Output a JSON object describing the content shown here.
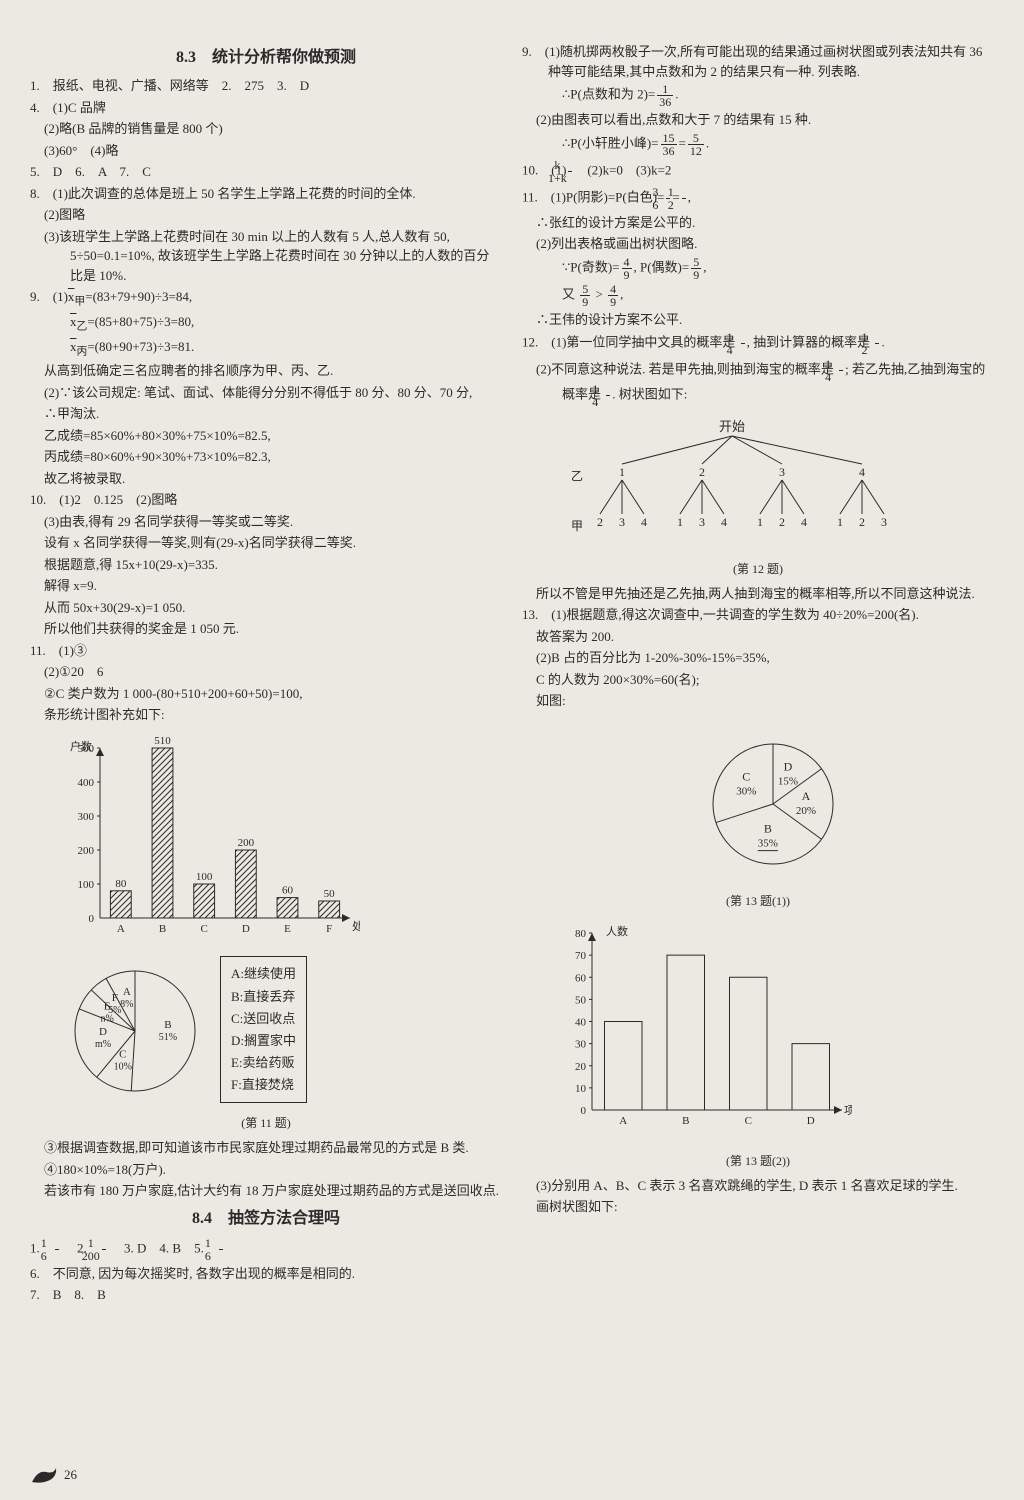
{
  "page_number": "26",
  "left": {
    "title83": "8.3　统计分析帮你做预测",
    "l1": "1.　报纸、电视、广播、网络等　2.　275　3.　D",
    "l4a": "4.　(1)C 品牌",
    "l4b": "(2)略(B 品牌的销售量是 800 个)",
    "l4c": "(3)60°　(4)略",
    "l5": "5.　D　6.　A　7.　C",
    "l8a": "8.　(1)此次调查的总体是班上 50 名学生上学路上花费的时间的全体.",
    "l8b": "(2)图略",
    "l8c": "(3)该班学生上学路上花费时间在 30 min 以上的人数有 5 人,总人数有 50, 5÷50=0.1=10%, 故该班学生上学路上花费时间在 30 分钟以上的人数的百分比是 10%.",
    "l9a": "9.　(1)x̄甲=(83+79+90)÷3=84,",
    "l9b": "x̄乙=(85+80+75)÷3=80,",
    "l9c": "x̄丙=(80+90+73)÷3=81.",
    "l9d": "从高到低确定三名应聘者的排名顺序为甲、丙、乙.",
    "l9e": "(2)∵该公司规定: 笔试、面试、体能得分分别不得低于 80 分、80 分、70 分,",
    "l9f": "∴甲淘汰.",
    "l9g": "乙成绩=85×60%+80×30%+75×10%=82.5,",
    "l9h": "丙成绩=80×60%+90×30%+73×10%=82.3,",
    "l9i": "故乙将被录取.",
    "l10a": "10.　(1)2　0.125　(2)图略",
    "l10b": "(3)由表,得有 29 名同学获得一等奖或二等奖.",
    "l10c": "设有 x 名同学获得一等奖,则有(29-x)名同学获得二等奖.",
    "l10d": "根据题意,得 15x+10(29-x)=335.",
    "l10e": "解得 x=9.",
    "l10f": "从而 50x+30(29-x)=1 050.",
    "l10g": "所以他们共获得的奖金是 1 050 元.",
    "l11a": "11.　(1)③",
    "l11b": "(2)①20　6",
    "l11c": "②C 类户数为 1 000-(80+510+200+60+50)=100,",
    "l11d": "条形统计图补充如下:",
    "bar_chart": {
      "y_label": "户数",
      "x_label": "处理方式",
      "categories": [
        "A",
        "B",
        "C",
        "D",
        "E",
        "F"
      ],
      "values": [
        80,
        510,
        100,
        200,
        60,
        50
      ],
      "ymax": 500,
      "ytick_step": 100,
      "bar_fill": "pattern",
      "axis_color": "#2a2a2a",
      "bg": "#ece9e2",
      "font_size": 11
    },
    "legend": {
      "items": [
        "A:继续使用",
        "B:直接丢弃",
        "C:送回收点",
        "D:搁置家中",
        "E:卖给药贩",
        "F:直接焚烧"
      ]
    },
    "pie": {
      "slices": [
        {
          "label": "B",
          "pct": "51%"
        },
        {
          "label": "C",
          "pct": "10%"
        },
        {
          "label": "D",
          "pct": "m%"
        },
        {
          "label": "E",
          "pct": "n%"
        },
        {
          "label": "F",
          "pct": "5%"
        },
        {
          "label": "A",
          "pct": "8%"
        }
      ],
      "stroke": "#2a2a2a"
    },
    "cap11": "(第 11 题)",
    "l11e": "③根据调查数据,即可知道该市市民家庭处理过期药品最常见的方式是 B 类.",
    "l11f": "④180×10%=18(万户).",
    "l11g": "若该市有 180 万户家庭,估计大约有 18 万户家庭处理过期药品的方式是送回收点.",
    "title84": "8.4　抽签方法合理吗",
    "l84_1_pre": "1.　",
    "l84_1_f1n": "1",
    "l84_1_f1d": "6",
    "l84_2": "　2.　",
    "l84_2_f1n": "1",
    "l84_2_f1d": "200",
    "l84_345": "　3. D　4. B　5.　",
    "l84_5_f1n": "1",
    "l84_5_f1d": "6",
    "l84_6": "6.　不同意, 因为每次摇奖时, 各数字出现的概率是相同的.",
    "l84_7": "7.　B　8.　B"
  },
  "right": {
    "l9a": "9.　(1)随机掷两枚骰子一次,所有可能出现的结果通过画树状图或列表法知共有 36 种等可能结果,其中点数和为 2 的结果只有一种. 列表略.",
    "l9b_pre": "∴P(点数和为 2)=",
    "l9b_f1n": "1",
    "l9b_f1d": "36",
    "l9b_post": ".",
    "l9c": "(2)由图表可以看出,点数和大于 7 的结果有 15 种.",
    "l9d_pre": "∴P(小轩胜小峰)=",
    "l9d_f1n": "15",
    "l9d_f1d": "36",
    "l9d_mid": "=",
    "l9d_f2n": "5",
    "l9d_f2d": "12",
    "l9d_post": ".",
    "l10_pre": "10.　(1)",
    "l10_f1n": "k",
    "l10_f1d": "1+k",
    "l10_post": "　(2)k=0　(3)k=2",
    "l11a_pre": "11.　(1)P(阴影)=P(白色)=",
    "l11a_f1n": "3",
    "l11a_f1d": "6",
    "l11a_mid": "=",
    "l11a_f2n": "1",
    "l11a_f2d": "2",
    "l11a_post": ",",
    "l11b": "∴张红的设计方案是公平的.",
    "l11c": "(2)列出表格或画出树状图略.",
    "l11d_pre": "∵P(奇数)=",
    "l11d_f1n": "4",
    "l11d_f1d": "9",
    "l11d_mid": ", P(偶数)=",
    "l11d_f2n": "5",
    "l11d_f2d": "9",
    "l11d_post": ",",
    "l11e_pre": "又 ",
    "l11e_f1n": "5",
    "l11e_f1d": "9",
    "l11e_mid": " > ",
    "l11e_f2n": "4",
    "l11e_f2d": "9",
    "l11e_post": ",",
    "l11f": "∴王伟的设计方案不公平.",
    "l12a_pre": "12.　(1)第一位同学抽中文具的概率是 ",
    "l12a_f1n": "1",
    "l12a_f1d": "4",
    "l12a_mid": ", 抽到计算器的概率是 ",
    "l12a_f2n": "1",
    "l12a_f2d": "2",
    "l12a_post": ".",
    "l12b_pre": "(2)不同意这种说法. 若是甲先抽,则抽到海宝的概率是 ",
    "l12b_f1n": "1",
    "l12b_f1d": "4",
    "l12b_mid": "; 若乙先抽,乙抽到海宝的概率是 ",
    "l12b_f2n": "1",
    "l12b_f2d": "4",
    "l12b_post": ". 树状图如下:",
    "tree": {
      "root": "开始",
      "level1_label": "乙",
      "level1": [
        "1",
        "2",
        "3",
        "4"
      ],
      "level2_label": "甲",
      "level2": [
        [
          "2",
          "3",
          "4"
        ],
        [
          "1",
          "3",
          "4"
        ],
        [
          "1",
          "2",
          "4"
        ],
        [
          "1",
          "2",
          "3"
        ]
      ]
    },
    "cap12": "(第 12 题)",
    "l12c": "所以不管是甲先抽还是乙先抽,两人抽到海宝的概率相等,所以不同意这种说法.",
    "l13a": "13.　(1)根据题意,得这次调查中,一共调查的学生数为 40÷20%=200(名).",
    "l13b": "故答案为 200.",
    "l13c": "(2)B 占的百分比为 1-20%-30%-15%=35%,",
    "l13d": "C 的人数为 200×30%=60(名);",
    "l13e": "如图:",
    "pie13": {
      "slices": [
        {
          "label": "A",
          "pct": "20%"
        },
        {
          "label": "B",
          "pct": "35%",
          "underline": true
        },
        {
          "label": "C",
          "pct": "30%"
        },
        {
          "label": "D",
          "pct": "15%"
        }
      ]
    },
    "cap13a": "(第 13 题(1))",
    "bar13": {
      "y_label": "人数",
      "x_label": "项目",
      "categories": [
        "A",
        "B",
        "C",
        "D"
      ],
      "values": [
        40,
        70,
        60,
        30
      ],
      "ymax": 80,
      "ytick_step": 10,
      "axis_color": "#2a2a2a",
      "font_size": 11
    },
    "cap13b": "(第 13 题(2))",
    "l13f": "(3)分别用 A、B、C 表示 3 名喜欢跳绳的学生, D 表示 1 名喜欢足球的学生.",
    "l13g": "画树状图如下:"
  }
}
